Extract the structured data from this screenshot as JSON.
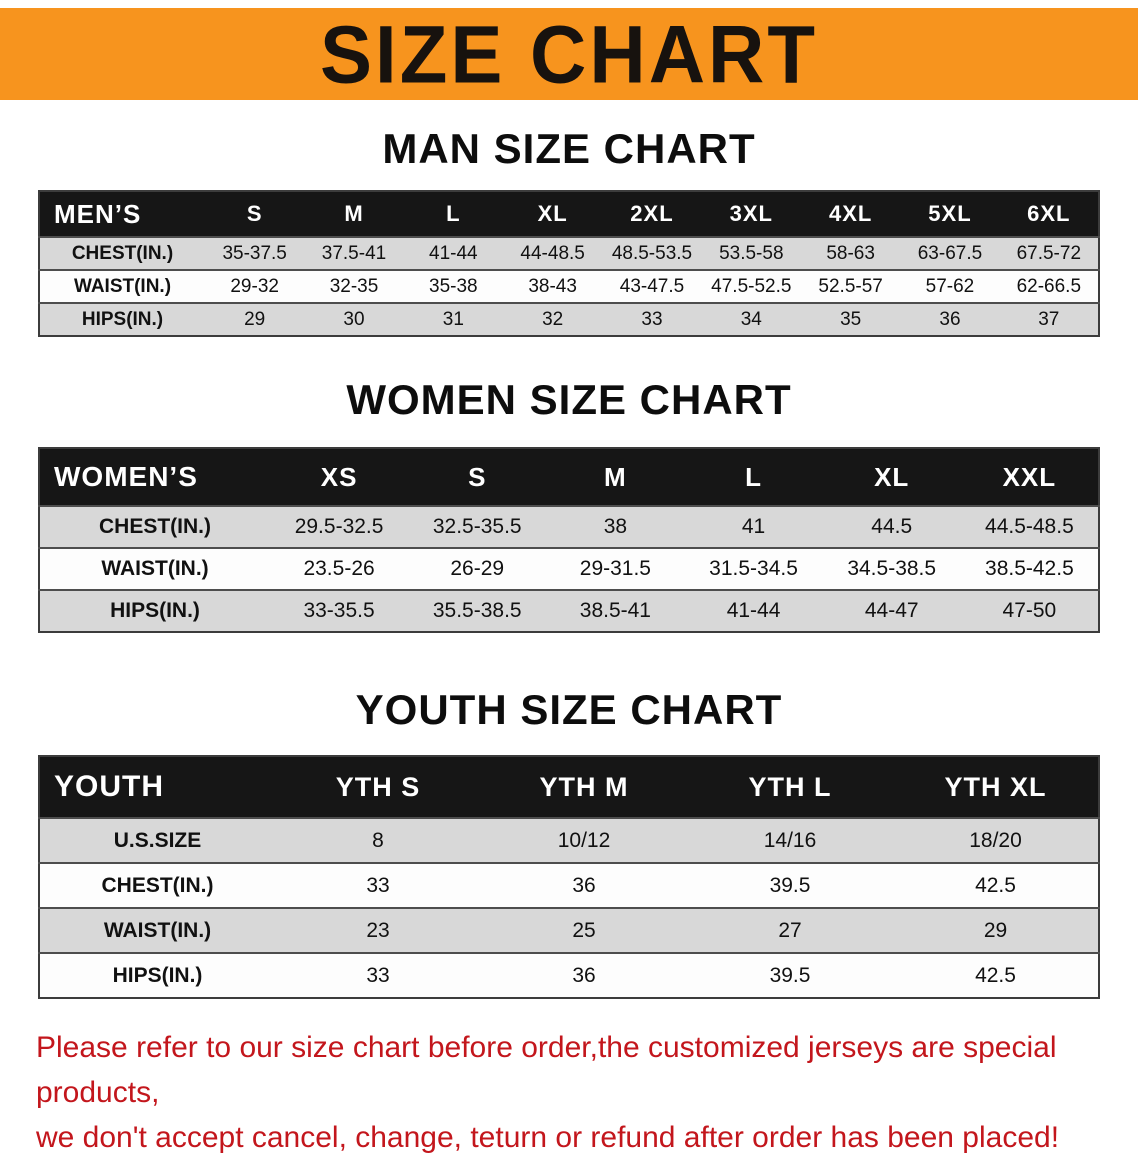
{
  "banner": {
    "title": "SIZE CHART",
    "bg_color": "#f7941e"
  },
  "sections": {
    "men": {
      "heading": "MAN SIZE CHART",
      "table": {
        "header": [
          "MEN’S",
          "S",
          "M",
          "L",
          "XL",
          "2XL",
          "3XL",
          "4XL",
          "5XL",
          "6XL"
        ],
        "rows": [
          {
            "label": "CHEST(IN.)",
            "values": [
              "35-37.5",
              "37.5-41",
              "41-44",
              "44-48.5",
              "48.5-53.5",
              "53.5-58",
              "58-63",
              "63-67.5",
              "67.5-72"
            ]
          },
          {
            "label": "WAIST(IN.)",
            "values": [
              "29-32",
              "32-35",
              "35-38",
              "38-43",
              "43-47.5",
              "47.5-52.5",
              "52.5-57",
              "57-62",
              "62-66.5"
            ]
          },
          {
            "label": "HIPS(IN.)",
            "values": [
              "29",
              "30",
              "31",
              "32",
              "33",
              "34",
              "35",
              "36",
              "37"
            ]
          }
        ]
      }
    },
    "women": {
      "heading": "WOMEN SIZE CHART",
      "table": {
        "header": [
          "WOMEN’S",
          "XS",
          "S",
          "M",
          "L",
          "XL",
          "XXL"
        ],
        "rows": [
          {
            "label": "CHEST(IN.)",
            "values": [
              "29.5-32.5",
              "32.5-35.5",
              "38",
              "41",
              "44.5",
              "44.5-48.5"
            ]
          },
          {
            "label": "WAIST(IN.)",
            "values": [
              "23.5-26",
              "26-29",
              "29-31.5",
              "31.5-34.5",
              "34.5-38.5",
              "38.5-42.5"
            ]
          },
          {
            "label": "HIPS(IN.)",
            "values": [
              "33-35.5",
              "35.5-38.5",
              "38.5-41",
              "41-44",
              "44-47",
              "47-50"
            ]
          }
        ]
      }
    },
    "youth": {
      "heading": "YOUTH SIZE CHART",
      "table": {
        "header": [
          "YOUTH",
          "YTH S",
          "YTH M",
          "YTH L",
          "YTH XL"
        ],
        "rows": [
          {
            "label": "U.S.SIZE",
            "values": [
              "8",
              "10/12",
              "14/16",
              "18/20"
            ]
          },
          {
            "label": "CHEST(IN.)",
            "values": [
              "33",
              "36",
              "39.5",
              "42.5"
            ]
          },
          {
            "label": "WAIST(IN.)",
            "values": [
              "23",
              "25",
              "27",
              "29"
            ]
          },
          {
            "label": "HIPS(IN.)",
            "values": [
              "33",
              "36",
              "39.5",
              "42.5"
            ]
          }
        ]
      }
    }
  },
  "disclaimer": {
    "line1": "Please refer to our size chart before order,the customized jerseys are special products,",
    "line2": "we don't accept cancel, change, teturn or refund after order has been placed!",
    "color": "#c3161c"
  }
}
